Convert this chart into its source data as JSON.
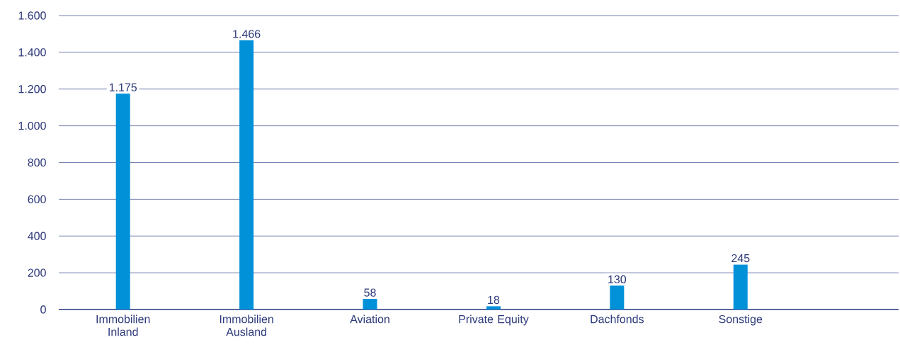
{
  "chart_data": {
    "type": "bar",
    "categories": [
      "Immobilien Inland",
      "Immobilien Ausland",
      "Aviation",
      "Private Equity",
      "Dachfonds",
      "Sonstige"
    ],
    "values": [
      1175,
      1466,
      58,
      18,
      130,
      245
    ],
    "value_labels": [
      "1.175",
      "1.466",
      "58",
      "18",
      "130",
      "245"
    ],
    "color": "#0091d9",
    "ylim": [
      0,
      1600
    ],
    "yticks": [
      {
        "value": 0,
        "label": "0"
      },
      {
        "value": 200,
        "label": "200"
      },
      {
        "value": 400,
        "label": "400"
      },
      {
        "value": 600,
        "label": "600"
      },
      {
        "value": 800,
        "label": "800"
      },
      {
        "value": 1000,
        "label": "1.000"
      },
      {
        "value": 1200,
        "label": "1.200"
      },
      {
        "value": 1400,
        "label": "1.400"
      },
      {
        "value": 1600,
        "label": "1.600"
      }
    ],
    "grid": "y"
  }
}
